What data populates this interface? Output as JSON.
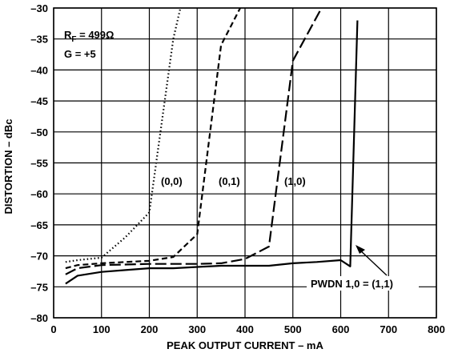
{
  "chart_data": {
    "type": "line",
    "xlabel": "PEAK OUTPUT CURRENT – mA",
    "ylabel": "DISTORTION – dBc",
    "xlim": [
      0,
      800
    ],
    "ylim": [
      -80,
      -30
    ],
    "x_ticks": [
      "0",
      "100",
      "200",
      "300",
      "400",
      "500",
      "600",
      "700",
      "800"
    ],
    "y_ticks": [
      "–30",
      "–35",
      "–40",
      "–45",
      "–50",
      "–55",
      "–60",
      "–65",
      "–70",
      "–75",
      "–80"
    ],
    "grid": true,
    "annotations": {
      "rf_label": "R",
      "rf_subscript": "F",
      "rf_value": " = 499Ω",
      "gain": "G = +5",
      "pwdn": "PWDN 1,0 = (1,1)"
    },
    "series": [
      {
        "name": "(0,0)",
        "style": "dotted",
        "x": [
          25,
          50,
          100,
          150,
          200,
          250,
          265
        ],
        "y": [
          -71.0,
          -70.7,
          -70.3,
          -67.0,
          -63.0,
          -35.0,
          -30.0
        ]
      },
      {
        "name": "(0,1)",
        "style": "short-dash",
        "x": [
          25,
          50,
          100,
          150,
          200,
          250,
          300,
          350,
          390
        ],
        "y": [
          -72.0,
          -71.5,
          -71.2,
          -71.0,
          -70.8,
          -70.2,
          -66.5,
          -36.0,
          -30.0
        ]
      },
      {
        "name": "(1,0)",
        "style": "long-dash",
        "x": [
          25,
          50,
          100,
          200,
          300,
          350,
          400,
          450,
          500,
          560
        ],
        "y": [
          -73.0,
          -72.0,
          -71.5,
          -71.3,
          -71.3,
          -71.2,
          -70.5,
          -68.5,
          -38.5,
          -30.0
        ]
      },
      {
        "name": "PWDN 1,0 = (1,1)",
        "style": "solid",
        "x": [
          25,
          50,
          100,
          150,
          200,
          250,
          300,
          350,
          400,
          450,
          500,
          550,
          600,
          620,
          635
        ],
        "y": [
          -74.5,
          -73.2,
          -72.6,
          -72.3,
          -72.0,
          -72.0,
          -71.8,
          -71.6,
          -71.6,
          -71.6,
          -71.2,
          -71.0,
          -70.7,
          -71.7,
          -32.0
        ]
      }
    ],
    "series_labels": [
      "(0,0)",
      "(0,1)",
      "(1,0)"
    ]
  }
}
